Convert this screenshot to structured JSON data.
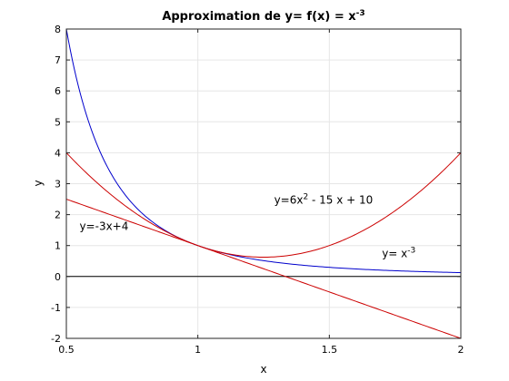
{
  "chart_data": {
    "type": "line",
    "title": {
      "prefix": "Approximation de y= f(x) = x",
      "exponent": "-3"
    },
    "xlabel": "x",
    "ylabel": "y",
    "xlim": [
      0.5,
      2
    ],
    "ylim": [
      -2,
      8
    ],
    "xticks": [
      0.5,
      1,
      1.5,
      2
    ],
    "xtick_labels": [
      "0.5",
      "1",
      "1.5",
      "2"
    ],
    "yticks": [
      -2,
      -1,
      0,
      1,
      2,
      3,
      4,
      5,
      6,
      7,
      8
    ],
    "ytick_labels": [
      "-2",
      "-1",
      "0",
      "1",
      "2",
      "3",
      "4",
      "5",
      "6",
      "7",
      "8"
    ],
    "grid": true,
    "zero_line": true,
    "series": [
      {
        "key": "f",
        "formula": "x^-3",
        "color": "#0000cc",
        "x": [
          0.5,
          0.6,
          0.7,
          0.8,
          0.9,
          1.0,
          1.1,
          1.2,
          1.3,
          1.4,
          1.5,
          1.6,
          1.7,
          1.8,
          1.9,
          2.0
        ],
        "y": [
          8.0,
          4.63,
          2.92,
          1.953,
          1.372,
          1.0,
          0.751,
          0.579,
          0.455,
          0.364,
          0.296,
          0.244,
          0.204,
          0.171,
          0.146,
          0.125
        ]
      },
      {
        "key": "tangent",
        "formula": "-3x+4",
        "color": "#cc0000",
        "x": [
          0.5,
          2.0
        ],
        "y": [
          2.5,
          -2.0
        ]
      },
      {
        "key": "quadratic",
        "formula": "6x^2 - 15x + 10",
        "color": "#cc0000",
        "x": [
          0.5,
          0.6,
          0.7,
          0.8,
          0.9,
          1.0,
          1.1,
          1.2,
          1.3,
          1.4,
          1.5,
          1.6,
          1.7,
          1.8,
          1.9,
          2.0
        ],
        "y": [
          4.0,
          3.16,
          2.44,
          1.84,
          1.36,
          1.0,
          0.76,
          0.64,
          0.64,
          0.76,
          1.0,
          1.36,
          1.84,
          2.44,
          3.16,
          4.0
        ]
      }
    ],
    "annotations": {
      "tangent": {
        "text": "y=-3x+4",
        "x": 0.55,
        "y": 1.5
      },
      "quadratic": {
        "prefix": "y=6x",
        "exponent": "2",
        "suffix": " - 15 x + 10",
        "x": 1.29,
        "y": 2.35
      },
      "f": {
        "prefix": "y= x",
        "exponent": "-3",
        "x": 1.7,
        "y": 0.62
      }
    }
  }
}
